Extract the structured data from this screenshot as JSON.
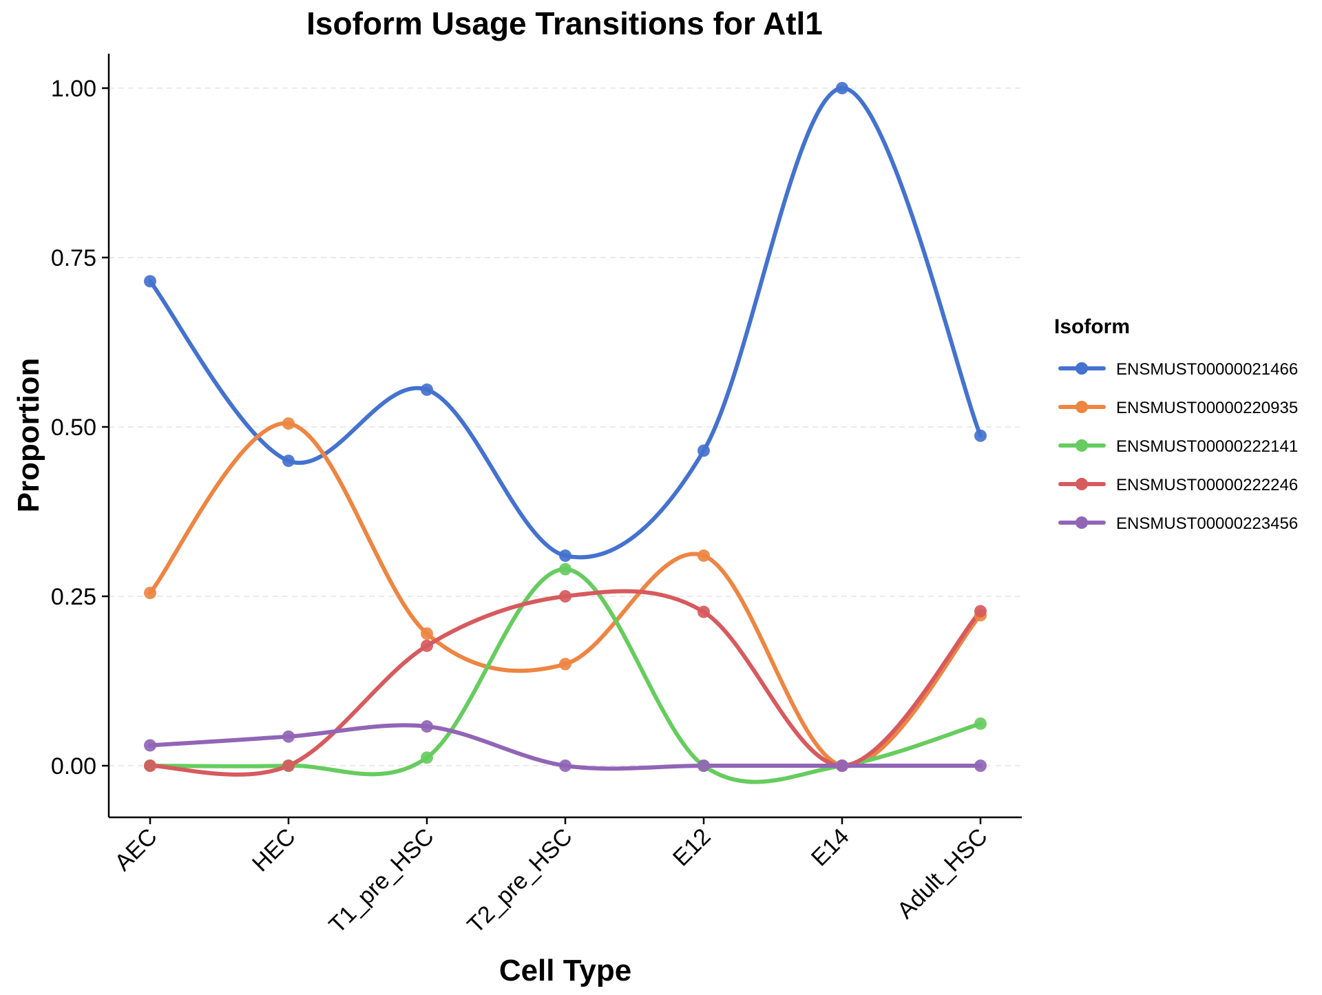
{
  "chart_data": {
    "type": "line",
    "title": "Isoform Usage Transitions for Atl1",
    "xlabel": "Cell Type",
    "ylabel": "Proportion",
    "categories": [
      "AEC",
      "HEC",
      "T1_pre_HSC",
      "T2_pre_HSC",
      "E12",
      "E14",
      "Adult_HSC"
    ],
    "ylim": [
      -0.075,
      1.05
    ],
    "yticks": [
      0.0,
      0.25,
      0.5,
      0.75,
      1.0
    ],
    "ytick_labels": [
      "0.00",
      "0.25",
      "0.50",
      "0.75",
      "1.00"
    ],
    "grid": "horizontal major, dashed",
    "smoothed": true,
    "legend": {
      "title": "Isoform",
      "position": "right"
    },
    "series": [
      {
        "name": "ENSMUST00000021466",
        "color": "#4472CF",
        "values": [
          0.715,
          0.45,
          0.555,
          0.31,
          0.465,
          1.0,
          0.487
        ]
      },
      {
        "name": "ENSMUST00000220935",
        "color": "#EE8542",
        "values": [
          0.255,
          0.505,
          0.195,
          0.15,
          0.31,
          0.0,
          0.222
        ]
      },
      {
        "name": "ENSMUST00000222141",
        "color": "#66CC5F",
        "values": [
          0.0,
          0.0,
          0.012,
          0.29,
          0.0,
          0.0,
          0.062
        ]
      },
      {
        "name": "ENSMUST00000222246",
        "color": "#D75A5E",
        "values": [
          0.0,
          0.0,
          0.177,
          0.25,
          0.227,
          0.0,
          0.228
        ]
      },
      {
        "name": "ENSMUST00000223456",
        "color": "#9165B6",
        "values": [
          0.03,
          0.043,
          0.058,
          0.0,
          0.0,
          0.0,
          0.0
        ]
      }
    ]
  }
}
